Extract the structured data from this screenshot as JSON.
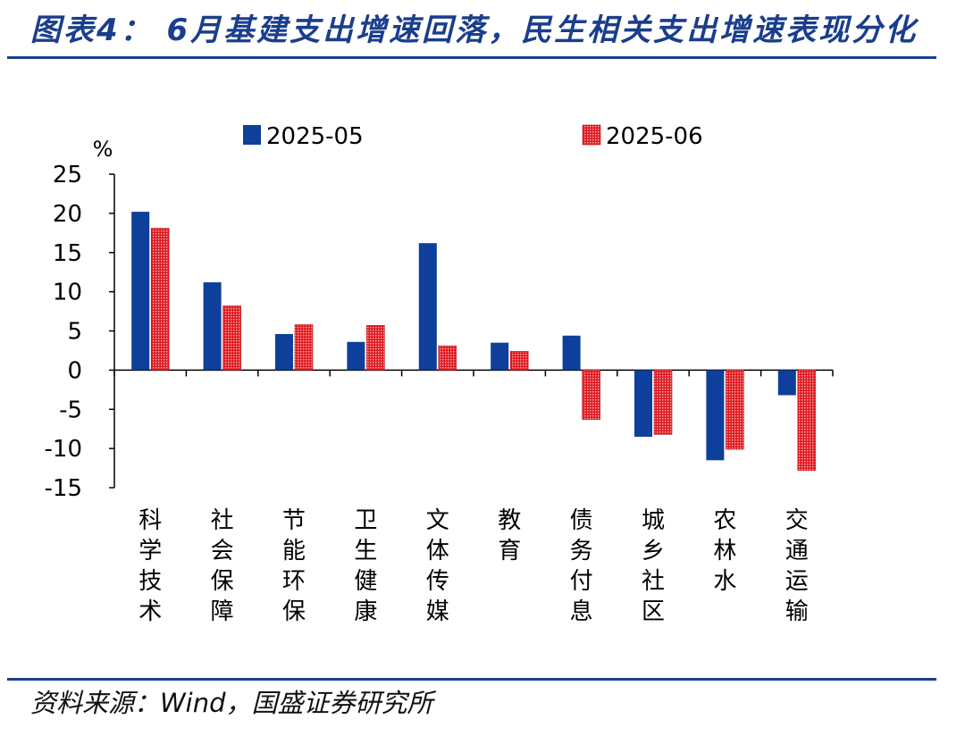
{
  "header": {
    "title": "图表4：  6月基建支出增速回落，民生相关支出增速表现分化"
  },
  "footer": {
    "source": "资料来源：Wind，国盛证券研究所"
  },
  "colors": {
    "accent": "#1a3e8c",
    "series1": "#0d3f9b",
    "series2": "#e01b22"
  },
  "chart_data": {
    "type": "bar",
    "unit_label": "%",
    "categories": [
      "科学技术",
      "社会保障",
      "节能环保",
      "卫生健康",
      "文体传媒",
      "教育",
      "债务付息",
      "城乡社区",
      "农林水",
      "交通运输"
    ],
    "series": [
      {
        "name": "2025-05",
        "values": [
          20.2,
          11.2,
          4.6,
          3.6,
          16.2,
          3.5,
          4.4,
          -8.5,
          -11.5,
          -3.2
        ],
        "pattern": "solid"
      },
      {
        "name": "2025-06",
        "values": [
          18.1,
          8.2,
          5.8,
          5.7,
          3.1,
          2.4,
          -6.3,
          -8.2,
          -10.1,
          -12.8
        ],
        "pattern": "hatched"
      }
    ],
    "ylim": [
      -15,
      25
    ],
    "yticks": [
      25,
      20,
      15,
      10,
      5,
      0,
      -5,
      -10,
      -15
    ],
    "legend_position": "top",
    "grid": false
  }
}
